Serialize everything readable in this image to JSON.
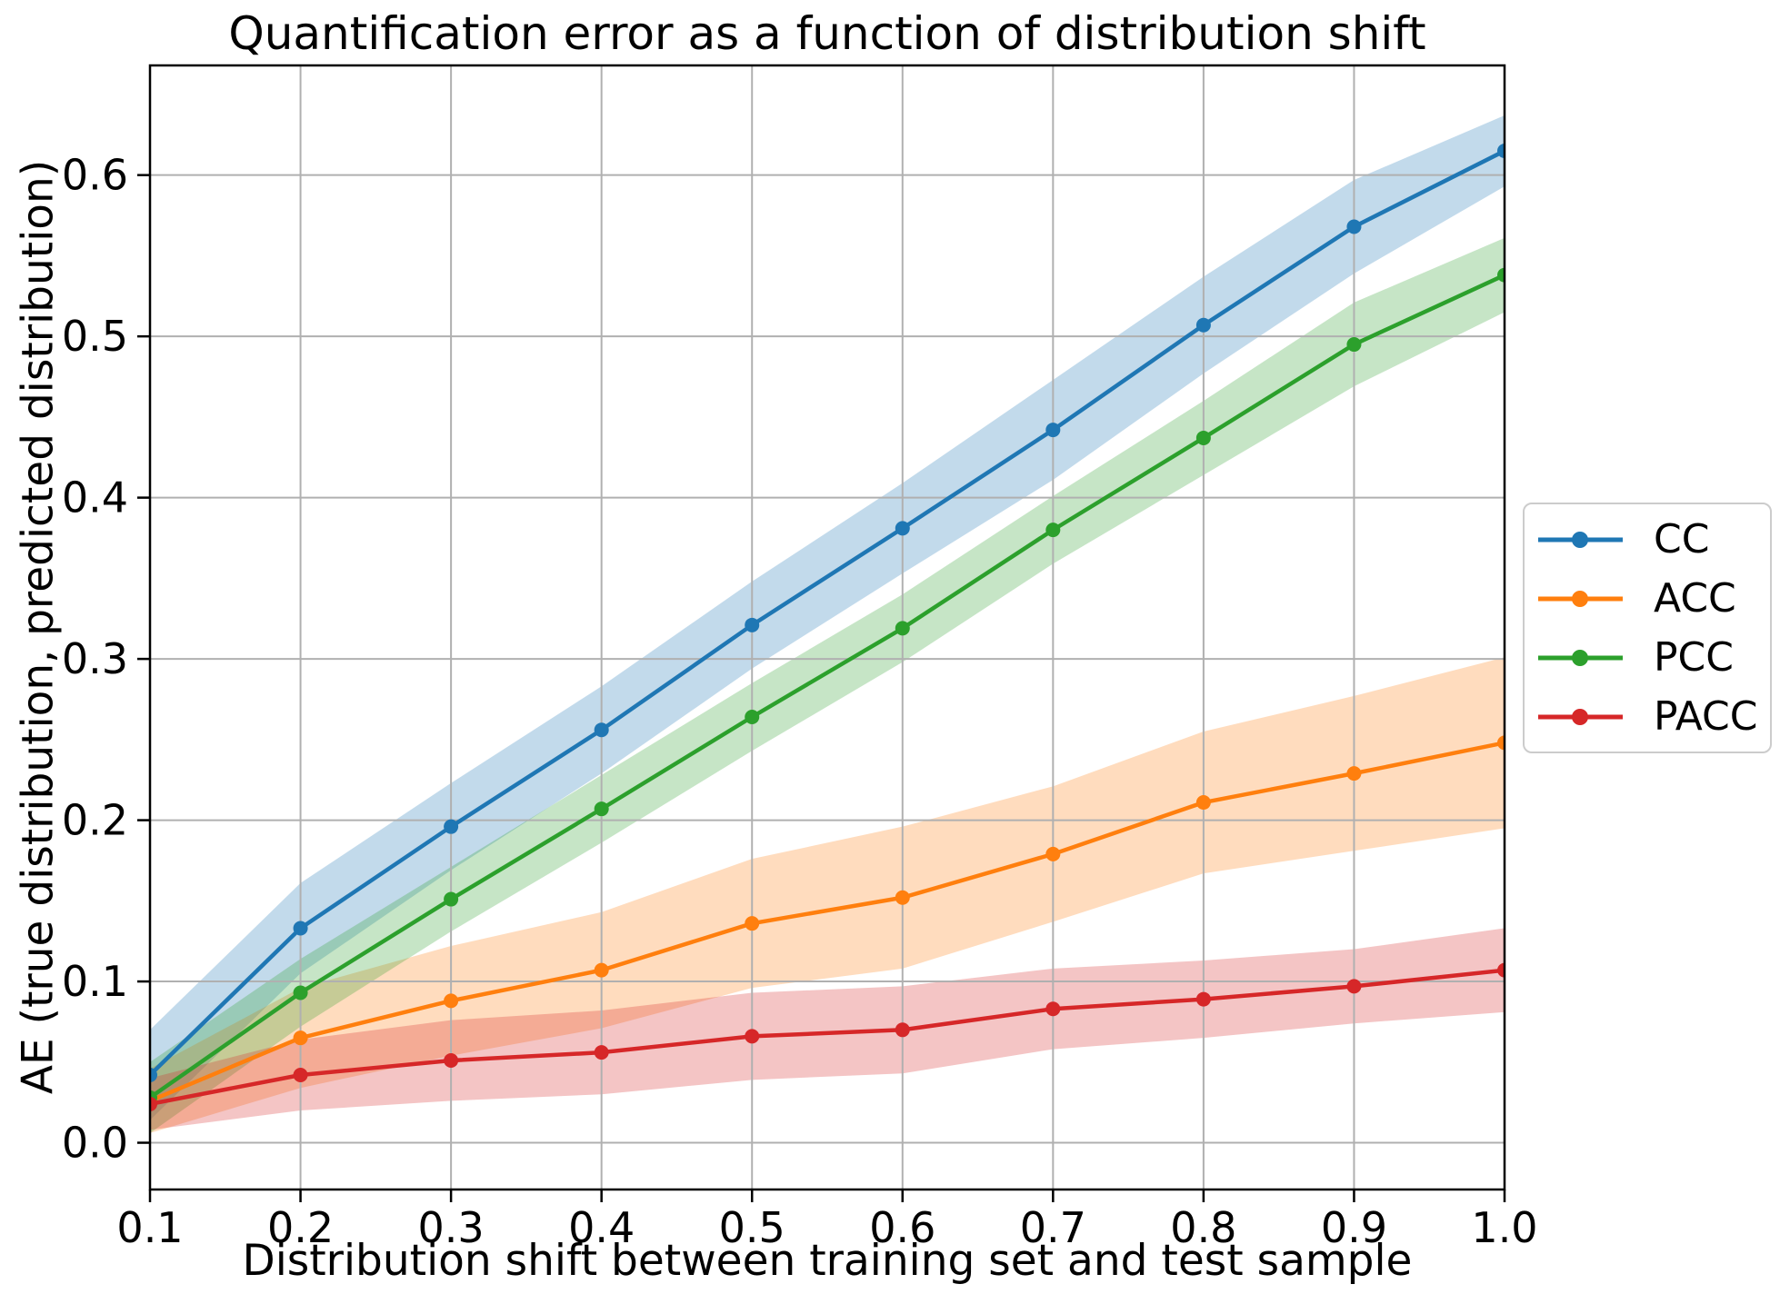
{
  "chart_data": {
    "type": "line",
    "title": "Quantification error as a function of distribution shift",
    "xlabel": "Distribution shift between training set and test sample",
    "ylabel": "AE (true distribution, predicted distribution)",
    "x": [
      0.1,
      0.2,
      0.3,
      0.4,
      0.5,
      0.6,
      0.7,
      0.8,
      0.9,
      1.0
    ],
    "x_tick_labels": [
      "0.1",
      "0.2",
      "0.3",
      "0.4",
      "0.5",
      "0.6",
      "0.7",
      "0.8",
      "0.9",
      "1.0"
    ],
    "y_ticks": [
      0.0,
      0.1,
      0.2,
      0.3,
      0.4,
      0.5,
      0.6
    ],
    "y_tick_labels": [
      "0.0",
      "0.1",
      "0.2",
      "0.3",
      "0.4",
      "0.5",
      "0.6"
    ],
    "xlim": [
      0.1,
      1.0
    ],
    "ylim": [
      -0.029,
      0.668
    ],
    "grid": true,
    "grid_color": "#b0b0b0",
    "spine_color": "#000000",
    "band_opacity": 0.27,
    "legend_position": "outside right, upper",
    "series": [
      {
        "name": "CC",
        "color": "#1f77b4",
        "values": [
          0.042,
          0.133,
          0.196,
          0.256,
          0.321,
          0.381,
          0.442,
          0.507,
          0.568,
          0.615
        ],
        "band_halfwidth": [
          0.028,
          0.028,
          0.027,
          0.027,
          0.027,
          0.028,
          0.031,
          0.03,
          0.029,
          0.022
        ]
      },
      {
        "name": "ACC",
        "color": "#ff7f0e",
        "values": [
          0.026,
          0.065,
          0.088,
          0.107,
          0.136,
          0.152,
          0.179,
          0.211,
          0.229,
          0.248
        ],
        "band_halfwidth": [
          0.02,
          0.031,
          0.034,
          0.036,
          0.04,
          0.044,
          0.042,
          0.044,
          0.048,
          0.053
        ]
      },
      {
        "name": "PCC",
        "color": "#2ca02c",
        "values": [
          0.028,
          0.093,
          0.151,
          0.207,
          0.264,
          0.319,
          0.38,
          0.437,
          0.495,
          0.538
        ],
        "band_halfwidth": [
          0.022,
          0.021,
          0.02,
          0.021,
          0.021,
          0.021,
          0.021,
          0.023,
          0.026,
          0.023
        ]
      },
      {
        "name": "PACC",
        "color": "#d62728",
        "values": [
          0.024,
          0.042,
          0.051,
          0.056,
          0.066,
          0.07,
          0.083,
          0.089,
          0.097,
          0.107
        ],
        "band_halfwidth": [
          0.016,
          0.022,
          0.025,
          0.026,
          0.027,
          0.027,
          0.025,
          0.024,
          0.023,
          0.026
        ]
      }
    ]
  },
  "legend": {
    "items": [
      {
        "label": "CC",
        "color": "#1f77b4"
      },
      {
        "label": "ACC",
        "color": "#ff7f0e"
      },
      {
        "label": "PCC",
        "color": "#2ca02c"
      },
      {
        "label": "PACC",
        "color": "#d62728"
      }
    ]
  }
}
